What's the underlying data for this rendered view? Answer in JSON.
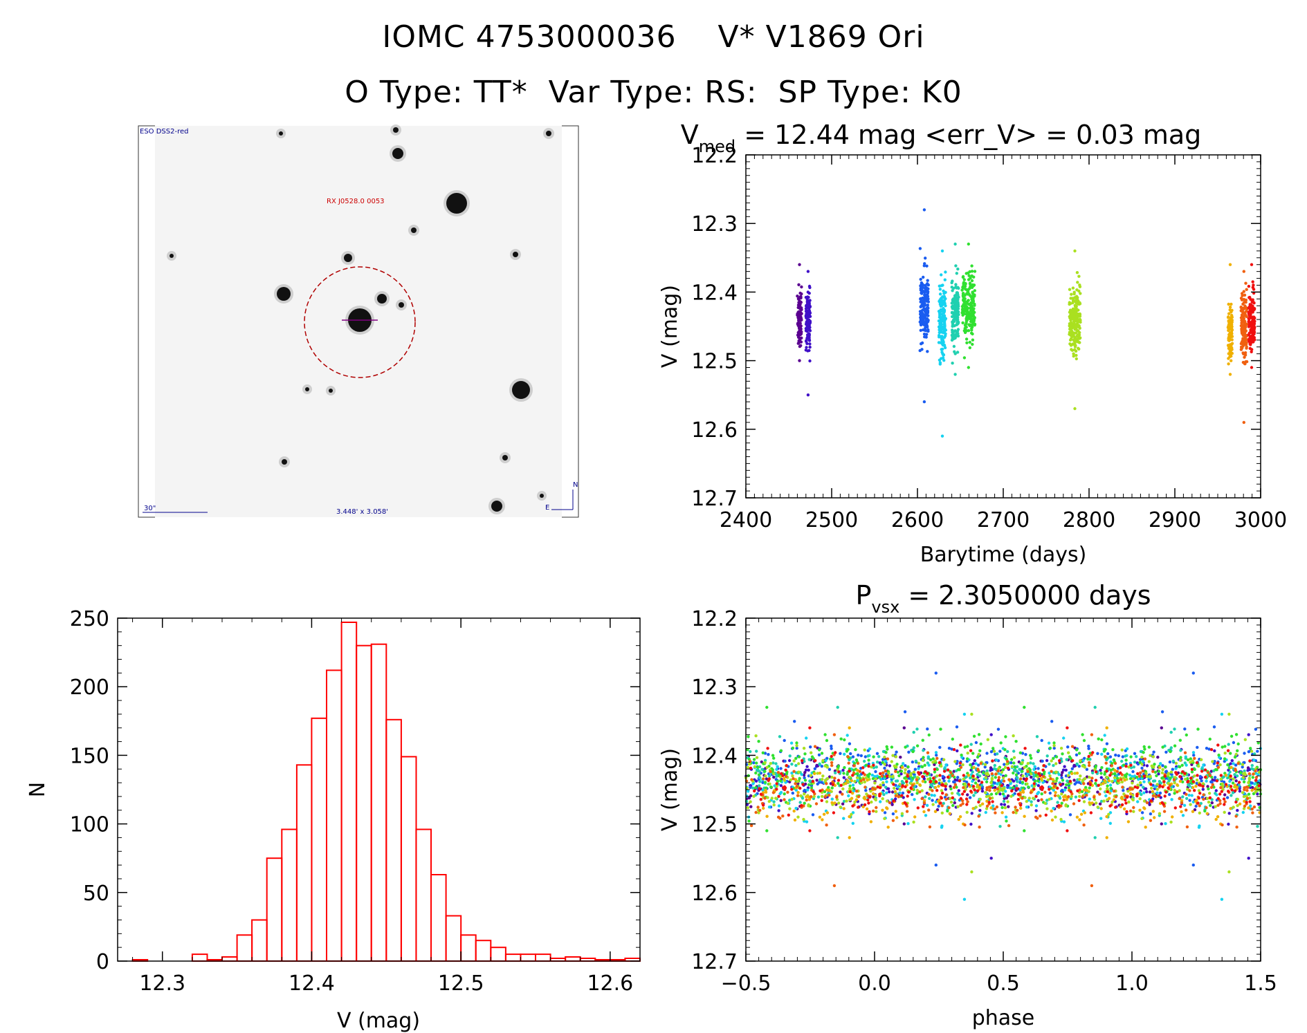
{
  "titles": {
    "line1": "IOMC 4753000036    V* V1869 Ori",
    "line2": "O Type: TT*  Var Type: RS:  SP Type: K0"
  },
  "finder_chart": {
    "survey_label": "ESO DSS2-red",
    "target_label": "RX J0528.0  0053",
    "scale_label": "30\"",
    "fov_label": "3.448' x 3.058'",
    "north_label": "N",
    "east_label": "E"
  },
  "colors": {
    "histogram": "#ff0000",
    "finder_circle": "#b00000",
    "finder_text": "#00008b",
    "finder_target_text": "#cc0000",
    "palette": [
      "#5a0090",
      "#3a20d8",
      "#1a5cf0",
      "#16d2f0",
      "#20d0b0",
      "#30e030",
      "#aae020",
      "#f0b000",
      "#f06010",
      "#f01010"
    ]
  },
  "chart_data": [
    {
      "type": "scatter",
      "name": "light_curve",
      "title_main": "V",
      "title_sub": "med",
      "title_rest": " = 12.44 mag <err_V> = 0.03 mag",
      "xlabel": "Barytime (days)",
      "ylabel": "V (mag)",
      "xlim": [
        2400,
        3000
      ],
      "ylim": [
        12.7,
        12.2
      ],
      "y_inverted": true,
      "xticks": [
        "2400",
        "2500",
        "2600",
        "2700",
        "2800",
        "2900",
        "3000"
      ],
      "yticks": [
        "12.2",
        "12.3",
        "12.4",
        "12.5",
        "12.6",
        "12.7"
      ],
      "series": [
        {
          "x_range": [
            2460,
            2465
          ],
          "y_center": 12.44,
          "y_spread": 0.035,
          "y_min": 12.36,
          "y_max": 12.5,
          "color": "#5a0090",
          "n": 90
        },
        {
          "x_range": [
            2470,
            2475
          ],
          "y_center": 12.44,
          "y_spread": 0.035,
          "y_min": 12.37,
          "y_max": 12.55,
          "color": "#4010c8",
          "n": 110
        },
        {
          "x_range": [
            2603,
            2613
          ],
          "y_center": 12.42,
          "y_spread": 0.04,
          "y_min": 12.28,
          "y_max": 12.56,
          "color": "#1a5cf0",
          "n": 160
        },
        {
          "x_range": [
            2625,
            2633
          ],
          "y_center": 12.44,
          "y_spread": 0.045,
          "y_min": 12.34,
          "y_max": 12.61,
          "color": "#16d2f0",
          "n": 150
        },
        {
          "x_range": [
            2640,
            2648
          ],
          "y_center": 12.43,
          "y_spread": 0.04,
          "y_min": 12.33,
          "y_max": 12.52,
          "color": "#20d0b0",
          "n": 150
        },
        {
          "x_range": [
            2652,
            2667
          ],
          "y_center": 12.42,
          "y_spread": 0.04,
          "y_min": 12.33,
          "y_max": 12.51,
          "color": "#30e030",
          "n": 200
        },
        {
          "x_range": [
            2777,
            2790
          ],
          "y_center": 12.44,
          "y_spread": 0.04,
          "y_min": 12.34,
          "y_max": 12.57,
          "color": "#aae020",
          "n": 220
        },
        {
          "x_range": [
            2962,
            2967
          ],
          "y_center": 12.46,
          "y_spread": 0.035,
          "y_min": 12.36,
          "y_max": 12.52,
          "color": "#f0b000",
          "n": 90
        },
        {
          "x_range": [
            2977,
            2984
          ],
          "y_center": 12.45,
          "y_spread": 0.04,
          "y_min": 12.37,
          "y_max": 12.59,
          "color": "#f06010",
          "n": 130
        },
        {
          "x_range": [
            2986,
            2993
          ],
          "y_center": 12.44,
          "y_spread": 0.035,
          "y_min": 12.36,
          "y_max": 12.51,
          "color": "#f01010",
          "n": 120
        }
      ]
    },
    {
      "type": "bar",
      "name": "histogram",
      "xlabel": "V (mag)",
      "ylabel": "N",
      "xlim": [
        12.27,
        12.62
      ],
      "ylim": [
        0,
        250
      ],
      "xticks": [
        "12.3",
        "12.4",
        "12.5",
        "12.6"
      ],
      "yticks": [
        "0",
        "50",
        "100",
        "150",
        "200",
        "250"
      ],
      "bin_width": 0.01,
      "bin_starts": [
        12.28,
        12.29,
        12.3,
        12.31,
        12.32,
        12.33,
        12.34,
        12.35,
        12.36,
        12.37,
        12.38,
        12.39,
        12.4,
        12.41,
        12.42,
        12.43,
        12.44,
        12.45,
        12.46,
        12.47,
        12.48,
        12.49,
        12.5,
        12.51,
        12.52,
        12.53,
        12.54,
        12.55,
        12.56,
        12.57,
        12.58,
        12.59,
        12.6,
        12.61
      ],
      "counts": [
        1,
        0,
        0,
        0,
        5,
        1,
        3,
        19,
        30,
        75,
        96,
        143,
        177,
        212,
        247,
        230,
        231,
        176,
        149,
        96,
        63,
        33,
        19,
        15,
        10,
        5,
        5,
        5,
        2,
        3,
        2,
        1,
        1,
        2
      ]
    },
    {
      "type": "scatter",
      "name": "phased_curve",
      "title_main": "P",
      "title_sub": "vsx",
      "title_rest": " = 2.3050000 days",
      "xlabel": "phase",
      "ylabel": "V (mag)",
      "xlim": [
        -0.5,
        1.5
      ],
      "ylim": [
        12.7,
        12.2
      ],
      "y_inverted": true,
      "period_days": 2.305,
      "xticks": [
        "−0.5",
        "0.0",
        "0.5",
        "1.0",
        "1.5"
      ],
      "yticks": [
        "12.2",
        "12.3",
        "12.4",
        "12.5",
        "12.6",
        "12.7"
      ]
    }
  ]
}
